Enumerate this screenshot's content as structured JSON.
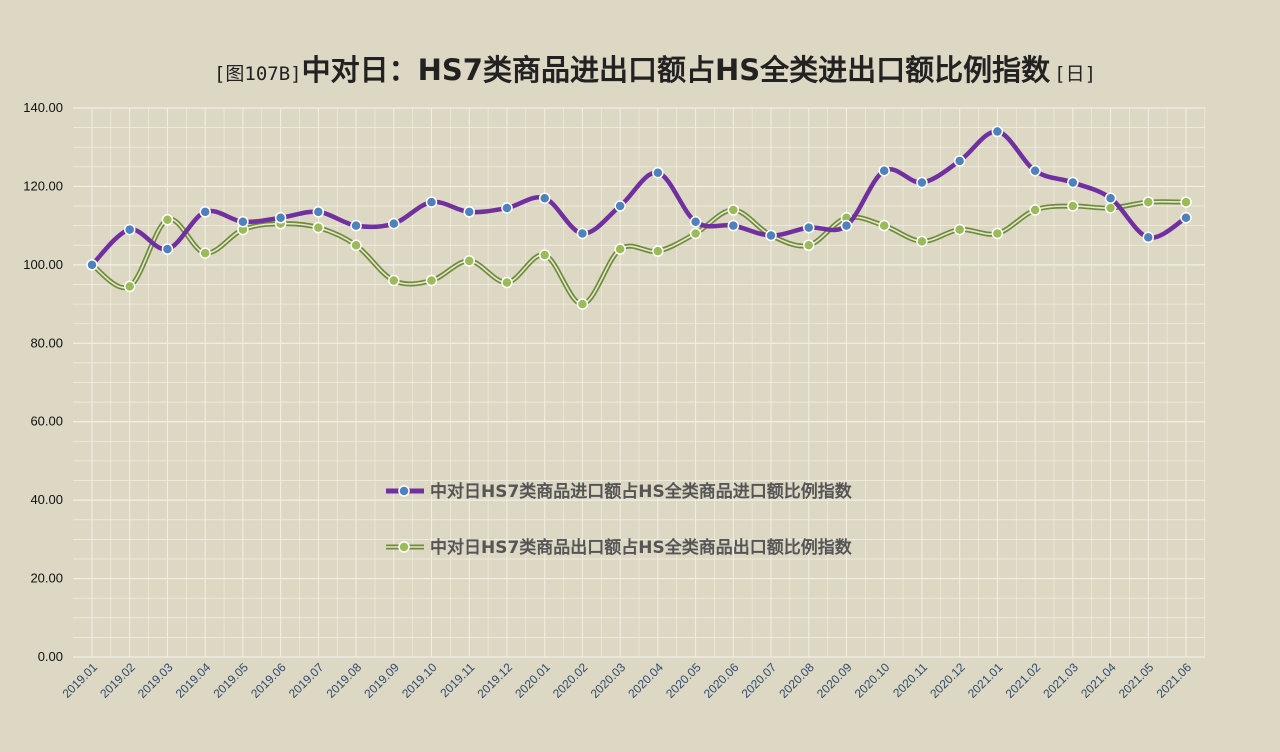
{
  "title": {
    "prefix": "[图107B]",
    "main": "中对日：HS7类商品进出口额占HS全类进出口额比例指数",
    "suffix": "[日]"
  },
  "colors": {
    "background": "#ddd8c4",
    "grid": "#f2efe2",
    "import_line": "#7030a0",
    "import_marker": "#4f81bd",
    "export_line": "#6e8b3d",
    "export_line_inner": "#e4e8c8",
    "export_marker": "#9bbb59"
  },
  "chart_data": {
    "type": "line",
    "title": "[图107B]中对日：HS7类商品进出口额占HS全类进出口额比例指数[日]",
    "categories": [
      "2019.01",
      "2019.02",
      "2019.03",
      "2019.04",
      "2019.05",
      "2019.06",
      "2019.07",
      "2019.08",
      "2019.09",
      "2019.10",
      "2019.11",
      "2019.12",
      "2020.01",
      "2020.02",
      "2020.03",
      "2020.04",
      "2020.05",
      "2020.06",
      "2020.07",
      "2020.08",
      "2020.09",
      "2020.10",
      "2020.11",
      "2020.12",
      "2021.01",
      "2021.02",
      "2021.03",
      "2021.04",
      "2021.05",
      "2021.06"
    ],
    "ylim": [
      0,
      140
    ],
    "yticks": [
      "0.00",
      "20.00",
      "40.00",
      "60.00",
      "80.00",
      "100.00",
      "120.00",
      "140.00"
    ],
    "grid": true,
    "legend_position": "center",
    "series": [
      {
        "name": "中对日HS7类商品进口额占HS全类商品进口额比例指数",
        "values": [
          100.0,
          109.0,
          104.0,
          113.5,
          111.0,
          112.0,
          113.5,
          110.0,
          110.5,
          116.0,
          113.5,
          114.5,
          117.0,
          108.0,
          115.0,
          123.5,
          111.0,
          110.0,
          107.5,
          109.5,
          110.0,
          124.0,
          121.0,
          126.5,
          134.0,
          124.0,
          121.0,
          117.0,
          107.0,
          112.0
        ]
      },
      {
        "name": "中对日HS7类商品出口额占HS全类商品出口额比例指数",
        "values": [
          100.0,
          94.5,
          111.5,
          103.0,
          109.0,
          110.5,
          109.5,
          105.0,
          96.0,
          96.0,
          101.0,
          95.5,
          102.5,
          90.0,
          104.0,
          103.5,
          108.0,
          114.0,
          107.5,
          105.0,
          112.0,
          110.0,
          106.0,
          109.0,
          108.0,
          114.0,
          115.0,
          114.5,
          116.0,
          116.0
        ]
      }
    ]
  }
}
